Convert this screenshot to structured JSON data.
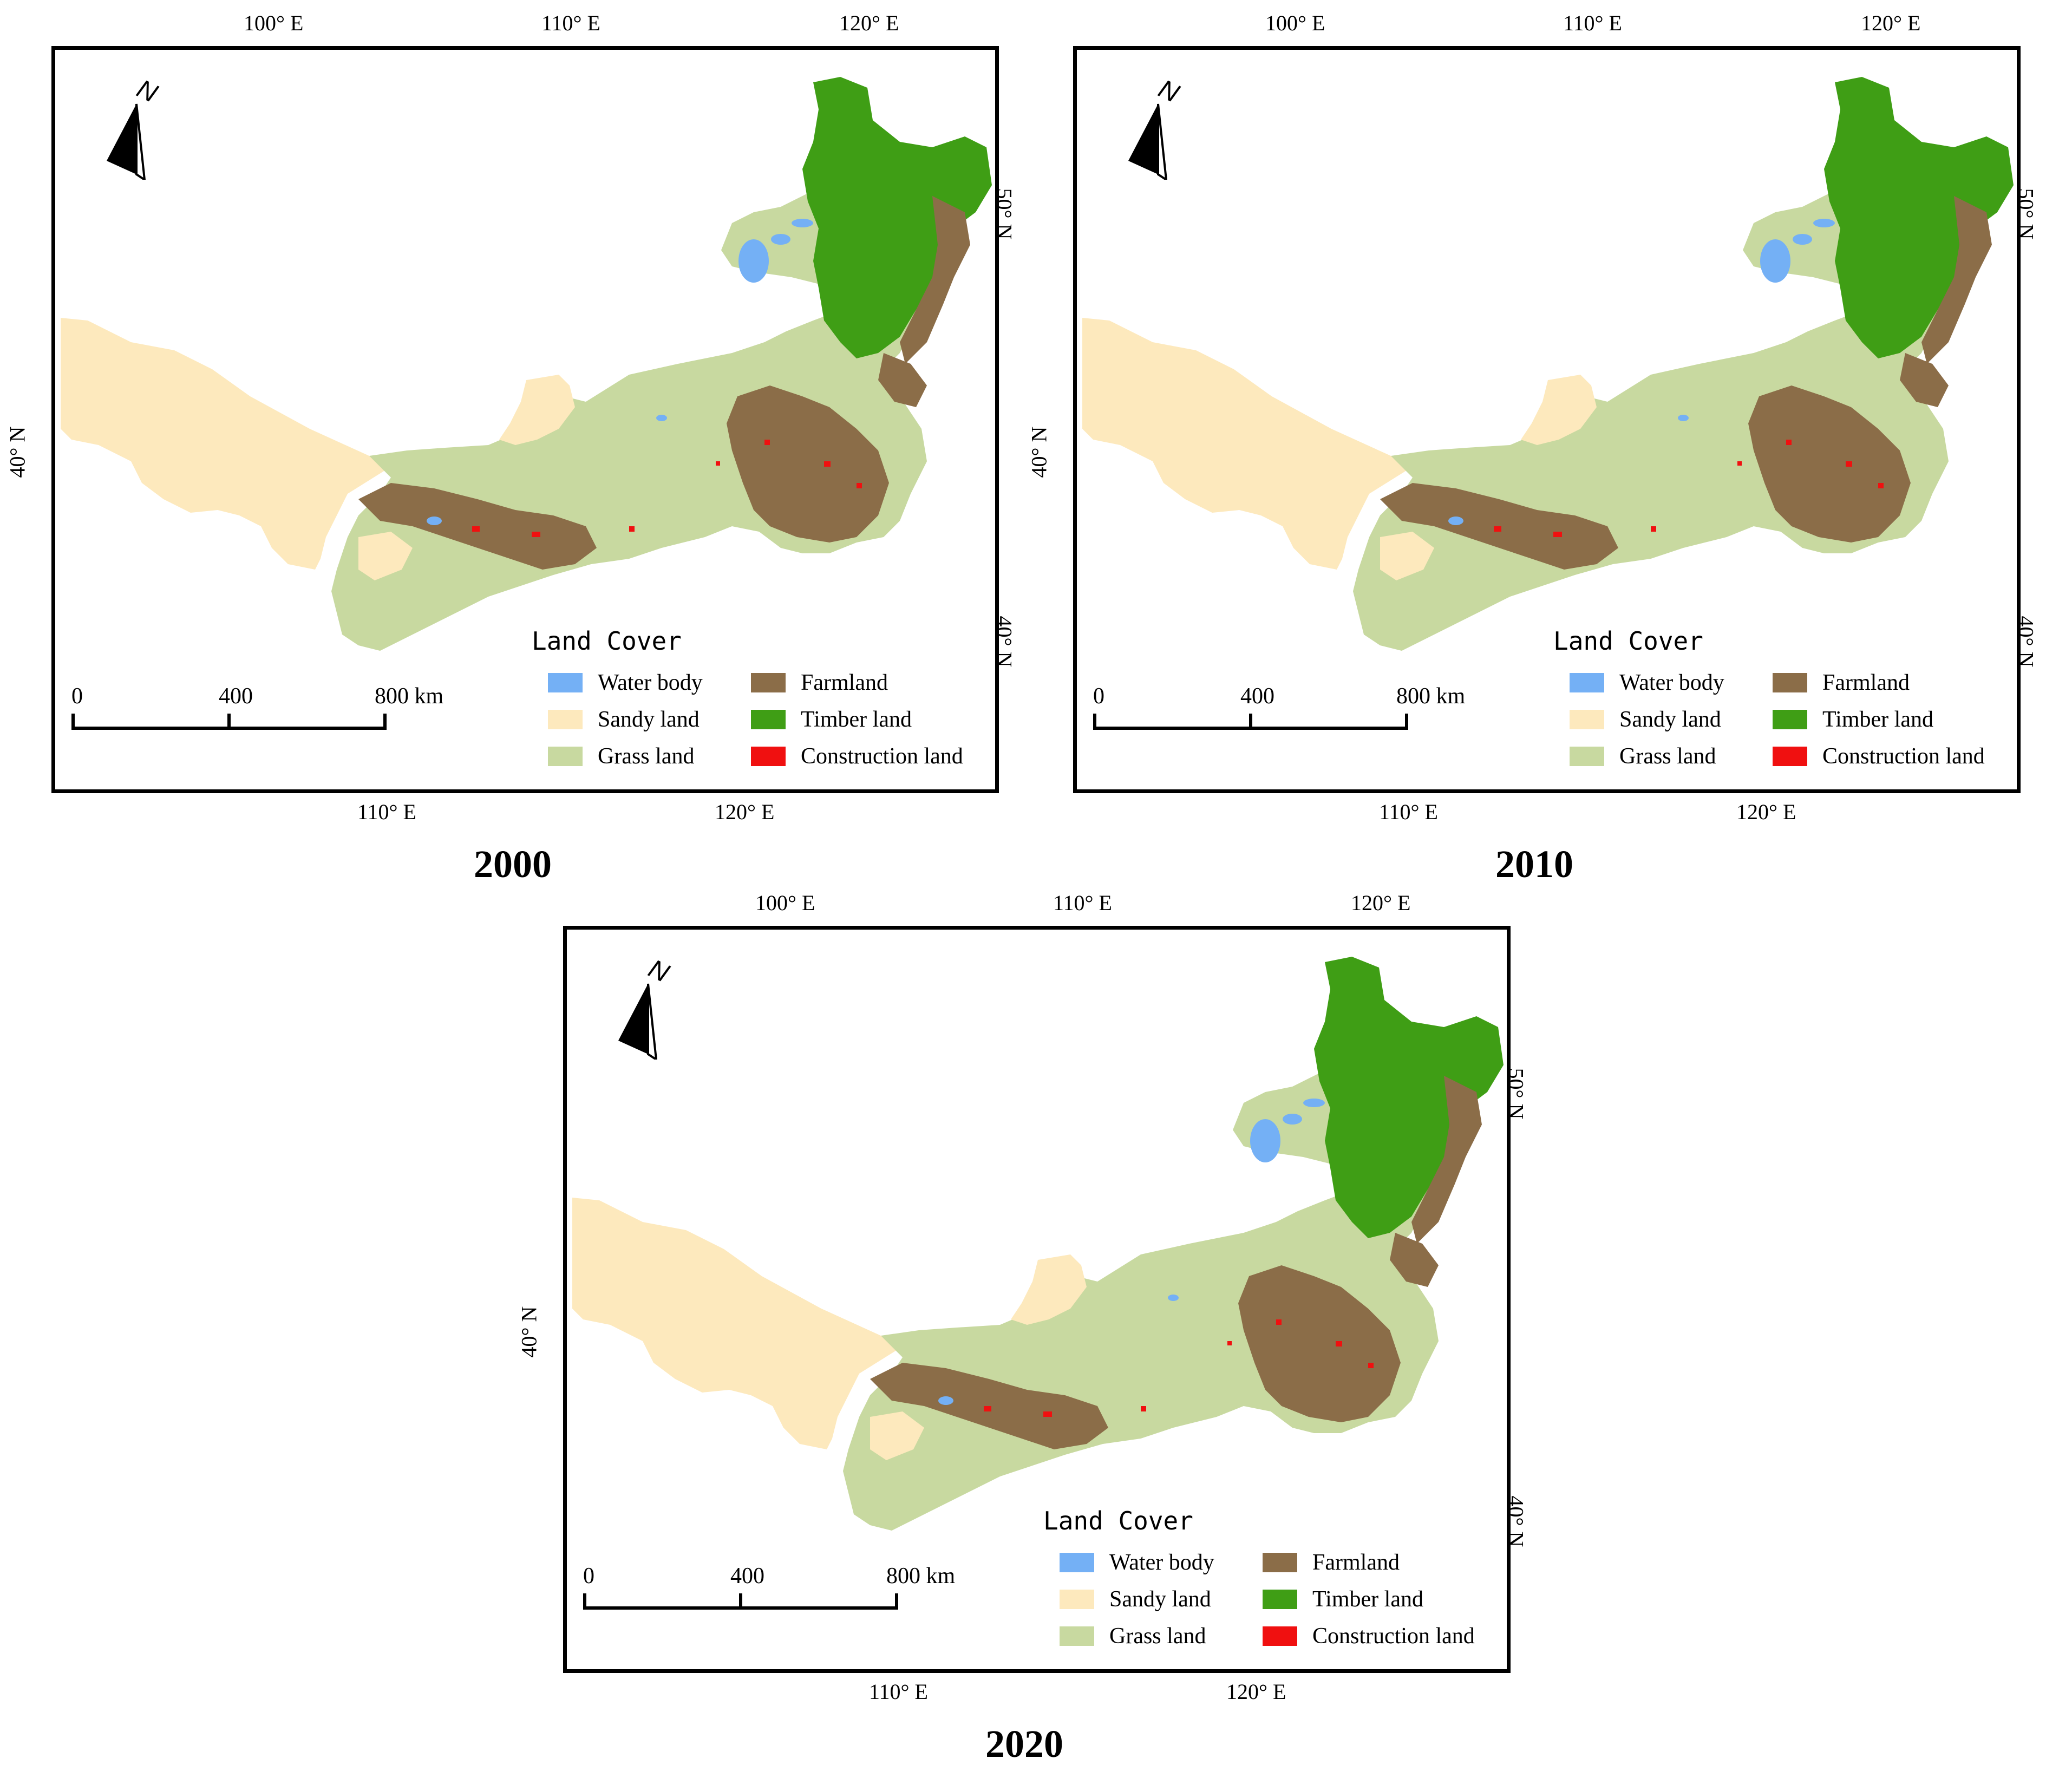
{
  "panels": [
    {
      "year": "2000",
      "top_ticks": [
        "100° E",
        "110° E",
        "120° E"
      ],
      "bottom_ticks": [
        "110° E",
        "120° E"
      ],
      "left_ticks": [
        "40° N"
      ],
      "right_ticks": [
        "50° N",
        "40° N"
      ]
    },
    {
      "year": "2010",
      "top_ticks": [
        "100° E",
        "110° E",
        "120° E"
      ],
      "bottom_ticks": [
        "110° E",
        "120° E"
      ],
      "left_ticks": [
        "40° N"
      ],
      "right_ticks": [
        "50° N",
        "40° N"
      ]
    },
    {
      "year": "2020",
      "top_ticks": [
        "100° E",
        "110° E",
        "120° E"
      ],
      "bottom_ticks": [
        "110° E",
        "120° E"
      ],
      "left_ticks": [
        "40° N"
      ],
      "right_ticks": [
        "50° N",
        "40° N"
      ]
    }
  ],
  "north_arrow": {
    "label": "N",
    "icon": "north-arrow-icon"
  },
  "scale_bar": {
    "labels": [
      "0",
      "400",
      "800 km"
    ]
  },
  "legend": {
    "title": "Land Cover",
    "items": [
      {
        "label": "Water body",
        "color": "#74b0f5"
      },
      {
        "label": "Sandy land",
        "color": "#fde9bd"
      },
      {
        "label": "Grass land",
        "color": "#c8d9a0"
      },
      {
        "label": "Farmland",
        "color": "#8b6d48"
      },
      {
        "label": "Timber land",
        "color": "#3f9e15"
      },
      {
        "label": "Construction land",
        "color": "#f01010"
      }
    ]
  }
}
